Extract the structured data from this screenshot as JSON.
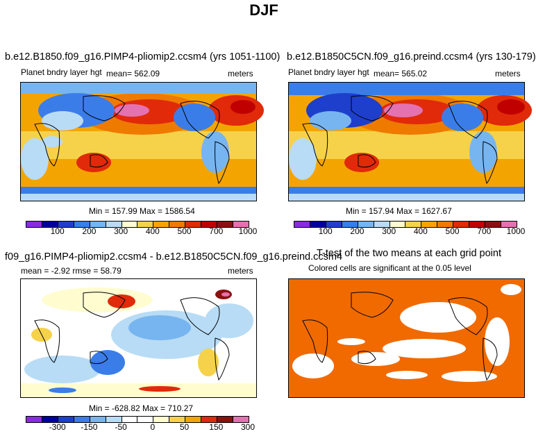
{
  "page": {
    "title": "DJF"
  },
  "panels": [
    {
      "title": "b.e12.B1850.f09_g16.PIMP4-pliomip2.ccsm4 (yrs 1051-1100)",
      "left_label": "Planet bndry layer hgt",
      "center_label": "mean= 562.09",
      "right_label": "meters",
      "stats": "Min = 157.99 Max = 1586.54",
      "colorbar_ticks": [
        "100",
        "200",
        "300",
        "400",
        "500",
        "700",
        "1000"
      ],
      "colors": [
        "#8a2be2",
        "#0000a0",
        "#1e3fcc",
        "#3b7de8",
        "#77b5f0",
        "#b8dcf5",
        "#fffcd0",
        "#f6d24a",
        "#f4a400",
        "#ee7a00",
        "#e02a0a",
        "#c00000",
        "#8b1010",
        "#e472b0"
      ]
    },
    {
      "title": "b.e12.B1850C5CN.f09_g16.preind.ccsm4 (yrs 130-179)",
      "left_label": "Planet bndry layer hgt",
      "center_label": "mean= 565.02",
      "right_label": "meters",
      "stats": "Min = 157.94 Max = 1627.67",
      "colorbar_ticks": [
        "100",
        "200",
        "300",
        "400",
        "500",
        "700",
        "1000"
      ],
      "colors": [
        "#8a2be2",
        "#0000a0",
        "#1e3fcc",
        "#3b7de8",
        "#77b5f0",
        "#b8dcf5",
        "#fffcd0",
        "#f6d24a",
        "#f4a400",
        "#ee7a00",
        "#e02a0a",
        "#c00000",
        "#8b1010",
        "#e472b0"
      ]
    },
    {
      "title": "f09_g16.PIMP4-pliomip2.ccsm4 - b.e12.B1850C5CN.f09_g16.preind.ccsm4",
      "left_label": "mean =   -2.92      rmse =   58.79",
      "right_label": "meters",
      "stats": "Min = -628.82 Max = 710.27",
      "colorbar_ticks": [
        "-300",
        "-150",
        "-50",
        "0",
        "50",
        "150",
        "300"
      ],
      "colors": [
        "#8a2be2",
        "#0000a0",
        "#1e3fcc",
        "#3b7de8",
        "#77b5f0",
        "#b8dcf5",
        "#ffffff",
        "#ffffff",
        "#fffcd0",
        "#f6d24a",
        "#f4a400",
        "#e02a0a",
        "#8b1010",
        "#e472b0"
      ]
    },
    {
      "title": "T-test of the two means at each grid point",
      "subtitle": "Colored cells are significant at the 0.05 level",
      "fill_color": "#f06a00"
    }
  ]
}
